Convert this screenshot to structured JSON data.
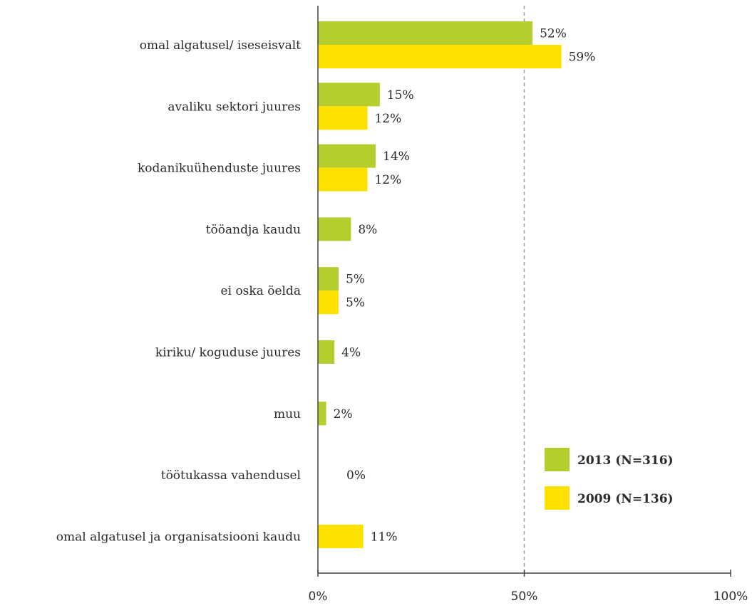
{
  "chart_data": {
    "type": "bar",
    "orientation": "horizontal",
    "categories": [
      "omal algatusel/ iseseisvalt",
      "avaliku sektori juures",
      "kodanikuühenduste juures",
      "tööandja kaudu",
      "ei oska öelda",
      "kiriku/ koguduse juures",
      "muu",
      "töötukassa vahendusel",
      "omal algatusel ja organisatsiooni kaudu"
    ],
    "series": [
      {
        "name": "2013 (N=316)",
        "color": "#b6ce2d",
        "values": [
          52,
          15,
          14,
          8,
          5,
          4,
          2,
          0,
          null
        ],
        "labels": [
          "52%",
          "15%",
          "14%",
          "8%",
          "5%",
          "4%",
          "2%",
          "0%",
          ""
        ]
      },
      {
        "name": "2009 (N=136)",
        "color": "#ffe100",
        "values": [
          59,
          12,
          12,
          null,
          5,
          null,
          null,
          null,
          11
        ],
        "labels": [
          "59%",
          "12%",
          "12%",
          "",
          "5%",
          "",
          "",
          "",
          "11%"
        ]
      }
    ],
    "xlim": [
      0,
      100
    ],
    "x_ticks": [
      0,
      50,
      100
    ],
    "x_tick_labels": [
      "0%",
      "50%",
      "100%"
    ],
    "reference_line": 50,
    "legend_position": "bottom-right",
    "grid": false
  }
}
